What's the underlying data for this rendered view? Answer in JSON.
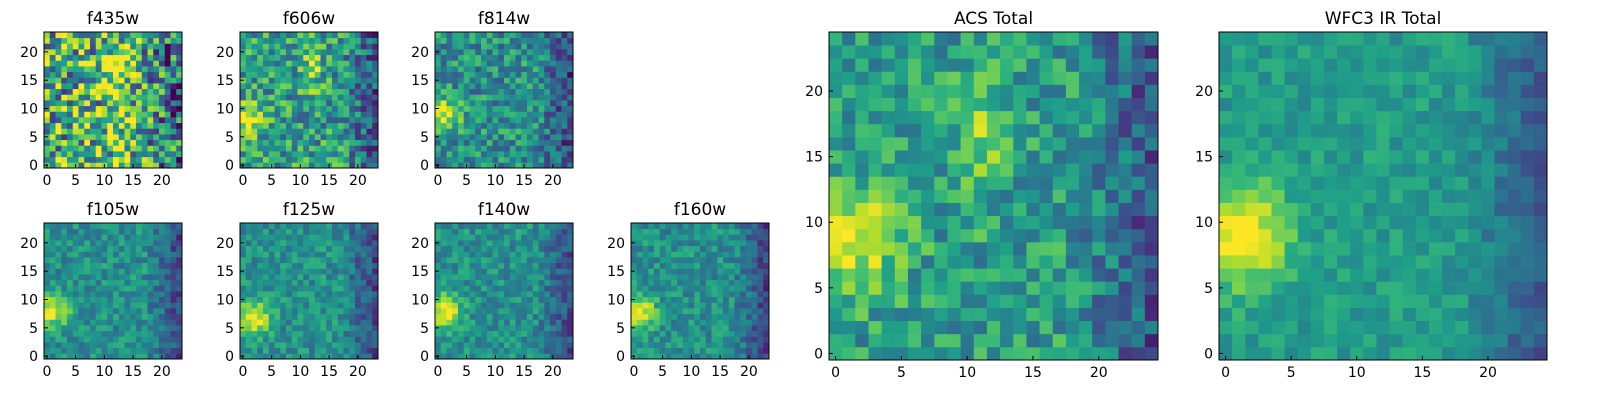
{
  "chart_data": [
    {
      "type": "heatmap",
      "title": "f435w",
      "grid": "24x24",
      "xlim": [
        0,
        24
      ],
      "ylim": [
        0,
        24
      ],
      "xticks": [
        "0",
        "5",
        "10",
        "15",
        "20"
      ],
      "yticks": [
        "0",
        "5",
        "10",
        "15",
        "20"
      ],
      "colormap": "viridis",
      "features": {
        "bright_blob": [
          12,
          17
        ],
        "bright_blob2": [
          13,
          3
        ],
        "noise": 0.9,
        "background": 0.62
      }
    },
    {
      "type": "heatmap",
      "title": "f606w",
      "grid": "24x24",
      "xlim": [
        0,
        24
      ],
      "ylim": [
        0,
        24
      ],
      "xticks": [
        "0",
        "5",
        "10",
        "15",
        "20"
      ],
      "yticks": [
        "0",
        "5",
        "10",
        "15",
        "20"
      ],
      "colormap": "viridis",
      "features": {
        "bright_blob": [
          1,
          8
        ],
        "bright_blob2": [
          12,
          18
        ],
        "noise": 0.55,
        "background": 0.55
      }
    },
    {
      "type": "heatmap",
      "title": "f814w",
      "grid": "24x24",
      "xlim": [
        0,
        24
      ],
      "ylim": [
        0,
        24
      ],
      "xticks": [
        "0",
        "5",
        "10",
        "15",
        "20"
      ],
      "yticks": [
        "0",
        "5",
        "10",
        "15",
        "20"
      ],
      "colormap": "viridis",
      "features": {
        "bright_blob": [
          1,
          9
        ],
        "noise": 0.45,
        "background": 0.5
      }
    },
    {
      "type": "heatmap",
      "title": "f105w",
      "grid": "24x24",
      "xlim": [
        0,
        24
      ],
      "ylim": [
        0,
        24
      ],
      "xticks": [
        "0",
        "5",
        "10",
        "15",
        "20"
      ],
      "yticks": [
        "0",
        "5",
        "10",
        "15",
        "20"
      ],
      "colormap": "viridis",
      "features": {
        "bright_blob": [
          1,
          8
        ],
        "noise": 0.3,
        "background": 0.5
      }
    },
    {
      "type": "heatmap",
      "title": "f125w",
      "grid": "24x24",
      "xlim": [
        0,
        24
      ],
      "ylim": [
        0,
        24
      ],
      "xticks": [
        "0",
        "5",
        "10",
        "15",
        "20"
      ],
      "yticks": [
        "0",
        "5",
        "10",
        "15",
        "20"
      ],
      "colormap": "viridis",
      "features": {
        "bright_blob": [
          2,
          7
        ],
        "noise": 0.3,
        "background": 0.5
      }
    },
    {
      "type": "heatmap",
      "title": "f140w",
      "grid": "24x24",
      "xlim": [
        0,
        24
      ],
      "ylim": [
        0,
        24
      ],
      "xticks": [
        "0",
        "5",
        "10",
        "15",
        "20"
      ],
      "yticks": [
        "0",
        "5",
        "10",
        "15",
        "20"
      ],
      "colormap": "viridis",
      "features": {
        "bright_blob": [
          1,
          8
        ],
        "noise": 0.3,
        "background": 0.5
      }
    },
    {
      "type": "heatmap",
      "title": "f160w",
      "grid": "24x24",
      "xlim": [
        0,
        24
      ],
      "ylim": [
        0,
        24
      ],
      "xticks": [
        "0",
        "5",
        "10",
        "15",
        "20"
      ],
      "yticks": [
        "0",
        "5",
        "10",
        "15",
        "20"
      ],
      "colormap": "viridis",
      "features": {
        "bright_blob": [
          1,
          8
        ],
        "noise": 0.3,
        "background": 0.5
      }
    },
    {
      "type": "heatmap",
      "title": "ACS Total",
      "grid": "25x25",
      "xlim": [
        0,
        25
      ],
      "ylim": [
        0,
        25
      ],
      "xticks": [
        "0",
        "5",
        "10",
        "15",
        "20"
      ],
      "yticks": [
        "0",
        "5",
        "10",
        "15",
        "20"
      ],
      "colormap": "viridis",
      "features": {
        "bright_blob": [
          1,
          9
        ],
        "bright_blob2": [
          11,
          17
        ],
        "noise": 0.4,
        "background": 0.55
      }
    },
    {
      "type": "heatmap",
      "title": "WFC3 IR Total",
      "grid": "25x25",
      "xlim": [
        0,
        25
      ],
      "ylim": [
        0,
        25
      ],
      "xticks": [
        "0",
        "5",
        "10",
        "15",
        "20"
      ],
      "yticks": [
        "0",
        "5",
        "10",
        "15",
        "20"
      ],
      "colormap": "viridis",
      "features": {
        "bright_blob": [
          1,
          9
        ],
        "noise": 0.2,
        "background": 0.55
      }
    }
  ]
}
